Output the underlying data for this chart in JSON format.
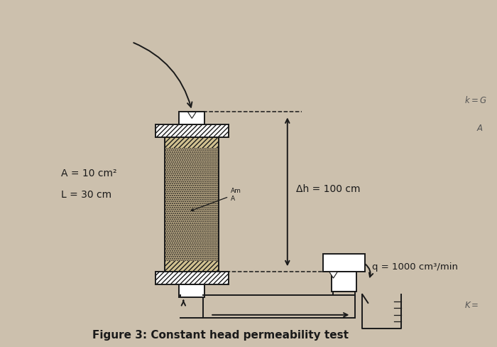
{
  "bg_color": "#ccc0ad",
  "line_color": "#1a1a1a",
  "title": "Figure 3: Constant head permeability test",
  "title_fontsize": 11,
  "label_A": "A = 10 cm²",
  "label_L": "L = 30 cm",
  "label_dh": "Δh = 100 cm",
  "label_q": "q = 1000 cm³/min",
  "label_area": "Am\nA",
  "fig_width": 7.0,
  "fig_height": 4.89
}
